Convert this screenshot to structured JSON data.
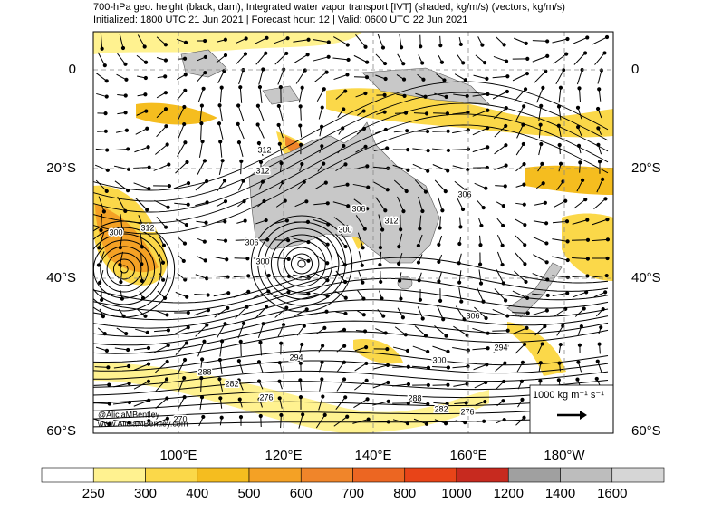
{
  "header": {
    "title": "700-hPa geo. height (black, dam), Integrated water vapor transport [IVT] (shaded, kg/m/s) (vectors, kg/m/s)",
    "subtitle": "Initialized: 1800 UTC 21 Jun 2021 | Forecast hour: 12 | Valid: 0600 UTC 22 Jun 2021"
  },
  "map": {
    "lat_labels": [
      "0",
      "20°S",
      "40°S",
      "60°S"
    ],
    "lon_labels": [
      "100°E",
      "120°E",
      "140°E",
      "160°E",
      "180°W"
    ],
    "contour_labels": [
      "312",
      "312",
      "306",
      "312",
      "306",
      "300",
      "306",
      "300",
      "300",
      "312",
      "306",
      "294",
      "300",
      "288",
      "282",
      "276",
      "270",
      "294",
      "288",
      "282",
      "276"
    ],
    "watermark": [
      "@AliciaMBentley",
      "www.AliciaMBentley.com"
    ],
    "vector_legend": "1000 kg m⁻¹ s⁻¹"
  },
  "colorbar": {
    "labels": [
      250,
      300,
      400,
      500,
      600,
      700,
      800,
      1000,
      1200,
      1400,
      1600
    ],
    "colors": [
      "#ffffff",
      "#fff290",
      "#fbd849",
      "#f5bd1f",
      "#f4a125",
      "#f0852a",
      "#ec6622",
      "#e84418",
      "#c72a1f",
      "#a0a0a0",
      "#bdbdbd",
      "#d6d6d6"
    ]
  }
}
